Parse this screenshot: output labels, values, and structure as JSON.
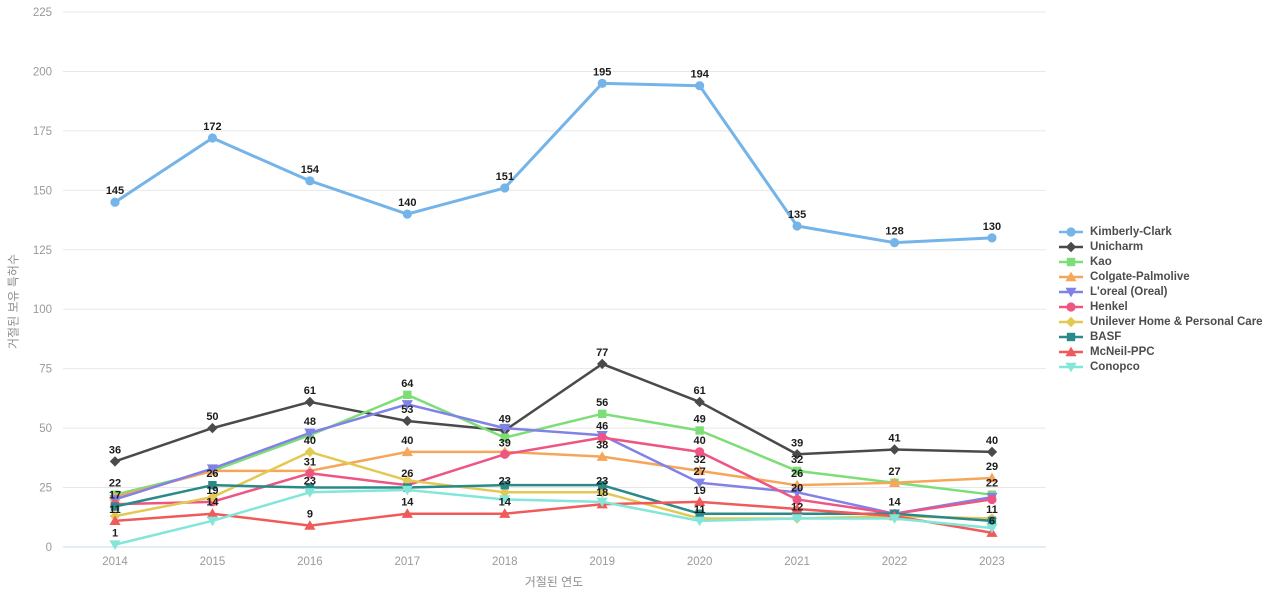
{
  "chart_data": {
    "type": "line",
    "title": "",
    "xlabel": "거절된 연도",
    "ylabel": "거절된 보유 특허수",
    "x": [
      2014,
      2015,
      2016,
      2017,
      2018,
      2019,
      2020,
      2021,
      2022,
      2023
    ],
    "ylim": [
      0,
      225
    ],
    "ytick_step": 25,
    "yticks": [
      0,
      25,
      50,
      75,
      100,
      125,
      150,
      175,
      200,
      225
    ],
    "grid": true,
    "legend_position": "right",
    "series": [
      {
        "name": "Kimberly-Clark",
        "color": "#74b4e8",
        "marker": "circle",
        "values": [
          145,
          172,
          154,
          140,
          151,
          195,
          194,
          135,
          128,
          130
        ],
        "labeled": [
          true,
          true,
          true,
          true,
          true,
          true,
          true,
          true,
          true,
          true
        ]
      },
      {
        "name": "Unicharm",
        "color": "#4a4a4a",
        "marker": "diamond",
        "values": [
          36,
          50,
          61,
          53,
          49,
          77,
          61,
          39,
          41,
          40
        ],
        "labeled": [
          true,
          true,
          true,
          true,
          true,
          true,
          true,
          true,
          true,
          true
        ]
      },
      {
        "name": "Kao",
        "color": "#7dde77",
        "marker": "square",
        "values": [
          22,
          32,
          47,
          64,
          46,
          56,
          49,
          32,
          27,
          22
        ],
        "labeled": [
          true,
          false,
          false,
          true,
          false,
          true,
          true,
          true,
          false,
          true
        ]
      },
      {
        "name": "Colgate-Palmolive",
        "color": "#f6a65b",
        "marker": "triangle-up",
        "values": [
          21,
          32,
          32,
          40,
          40,
          38,
          32,
          26,
          27,
          29
        ],
        "labeled": [
          false,
          false,
          false,
          true,
          false,
          true,
          true,
          true,
          true,
          true
        ]
      },
      {
        "name": "L'oreal (Oreal)",
        "color": "#8082e7",
        "marker": "triangle-down",
        "values": [
          20,
          33,
          48,
          60,
          50,
          47,
          27,
          23,
          14,
          21
        ],
        "labeled": [
          false,
          false,
          true,
          false,
          false,
          false,
          true,
          false,
          true,
          false
        ]
      },
      {
        "name": "Henkel",
        "color": "#ee5582",
        "marker": "circle",
        "values": [
          18,
          19,
          31,
          26,
          39,
          46,
          40,
          20,
          14,
          20
        ],
        "labeled": [
          false,
          true,
          true,
          true,
          true,
          true,
          true,
          true,
          false,
          false
        ]
      },
      {
        "name": "Unilever Home & Personal Care",
        "color": "#e2c951",
        "marker": "diamond",
        "values": [
          13,
          21,
          40,
          28,
          23,
          23,
          12,
          12,
          13,
          12
        ],
        "labeled": [
          false,
          false,
          true,
          false,
          true,
          true,
          false,
          true,
          false,
          false
        ]
      },
      {
        "name": "BASF",
        "color": "#2a8989",
        "marker": "square",
        "values": [
          17,
          26,
          25,
          25,
          26,
          26,
          14,
          14,
          14,
          11
        ],
        "labeled": [
          true,
          true,
          false,
          false,
          false,
          false,
          false,
          false,
          false,
          true
        ]
      },
      {
        "name": "McNeil-PPC",
        "color": "#f05a5a",
        "marker": "triangle-up",
        "values": [
          11,
          14,
          9,
          14,
          14,
          18,
          19,
          16,
          13,
          6
        ],
        "labeled": [
          true,
          true,
          true,
          true,
          true,
          true,
          true,
          false,
          false,
          true
        ]
      },
      {
        "name": "Conopco",
        "color": "#82e6d8",
        "marker": "triangle-down",
        "values": [
          1,
          11,
          23,
          24,
          20,
          19,
          11,
          12,
          12,
          8
        ],
        "labeled": [
          true,
          false,
          true,
          false,
          false,
          false,
          true,
          false,
          false,
          false
        ]
      }
    ]
  },
  "theme": {
    "background": "#ffffff",
    "grid_color": "#e8e8e8",
    "axis_line_color": "#ccd9ea",
    "tick_text_color": "#9a9a9a",
    "point_label_color": "#1c1c1c",
    "legend_text_color": "#4d4d4d"
  }
}
